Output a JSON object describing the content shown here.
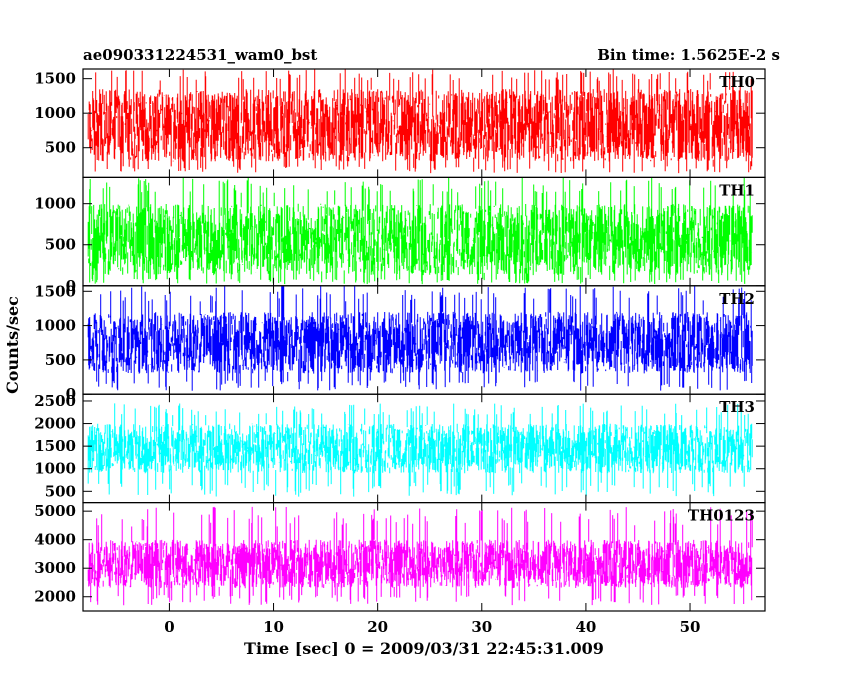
{
  "header": {
    "left": "ae090331224531_wam0_bst",
    "right": "Bin time: 1.5625E-2 s"
  },
  "chart_data": {
    "type": "line",
    "xlabel": "Time [sec] 0 = 2009/03/31 22:45:31.009",
    "ylabel": "Counts/sec",
    "xlim": [
      -8.3,
      57.2
    ],
    "x_ticks": [
      "0",
      "10",
      "20",
      "30",
      "40",
      "50"
    ],
    "x_tick_values": [
      0,
      10,
      20,
      30,
      40,
      50
    ],
    "x_data_range": [
      -7.8,
      56.0
    ],
    "bin_time": 0.015625,
    "grid": false,
    "panels": [
      {
        "name": "TH0",
        "color": "#ff0000",
        "ylim": [
          70,
          1640
        ],
        "y_ticks": [
          "500",
          "1000",
          "1500"
        ],
        "y_tick_values": [
          500,
          1000,
          1500
        ],
        "typical_range": [
          300,
          1350
        ],
        "spike_min": 130,
        "spike_max": 1640
      },
      {
        "name": "TH1",
        "color": "#00ff00",
        "ylim": [
          0,
          1320
        ],
        "y_ticks": [
          "0",
          "500",
          "1000"
        ],
        "y_tick_values": [
          0,
          500,
          1000
        ],
        "typical_range": [
          130,
          1000
        ],
        "spike_min": 20,
        "spike_max": 1320
      },
      {
        "name": "TH2",
        "color": "#0000ff",
        "ylim": [
          0,
          1580
        ],
        "y_ticks": [
          "0",
          "500",
          "1000",
          "1500"
        ],
        "y_tick_values": [
          0,
          500,
          1000,
          1500
        ],
        "typical_range": [
          300,
          1200
        ],
        "spike_min": 50,
        "spike_max": 1580
      },
      {
        "name": "TH3",
        "color": "#00ffff",
        "ylim": [
          250,
          2650
        ],
        "y_ticks": [
          "500",
          "1000",
          "1500",
          "2000",
          "2500"
        ],
        "y_tick_values": [
          500,
          1000,
          1500,
          2000,
          2500
        ],
        "typical_range": [
          900,
          2000
        ],
        "spike_min": 380,
        "spike_max": 2450
      },
      {
        "name": "TH0123",
        "color": "#ff00ff",
        "ylim": [
          1500,
          5300
        ],
        "y_ticks": [
          "2000",
          "3000",
          "4000",
          "5000"
        ],
        "y_tick_values": [
          2000,
          3000,
          4000,
          5000
        ],
        "typical_range": [
          2300,
          4000
        ],
        "spike_min": 1700,
        "spike_max": 5150
      }
    ]
  }
}
